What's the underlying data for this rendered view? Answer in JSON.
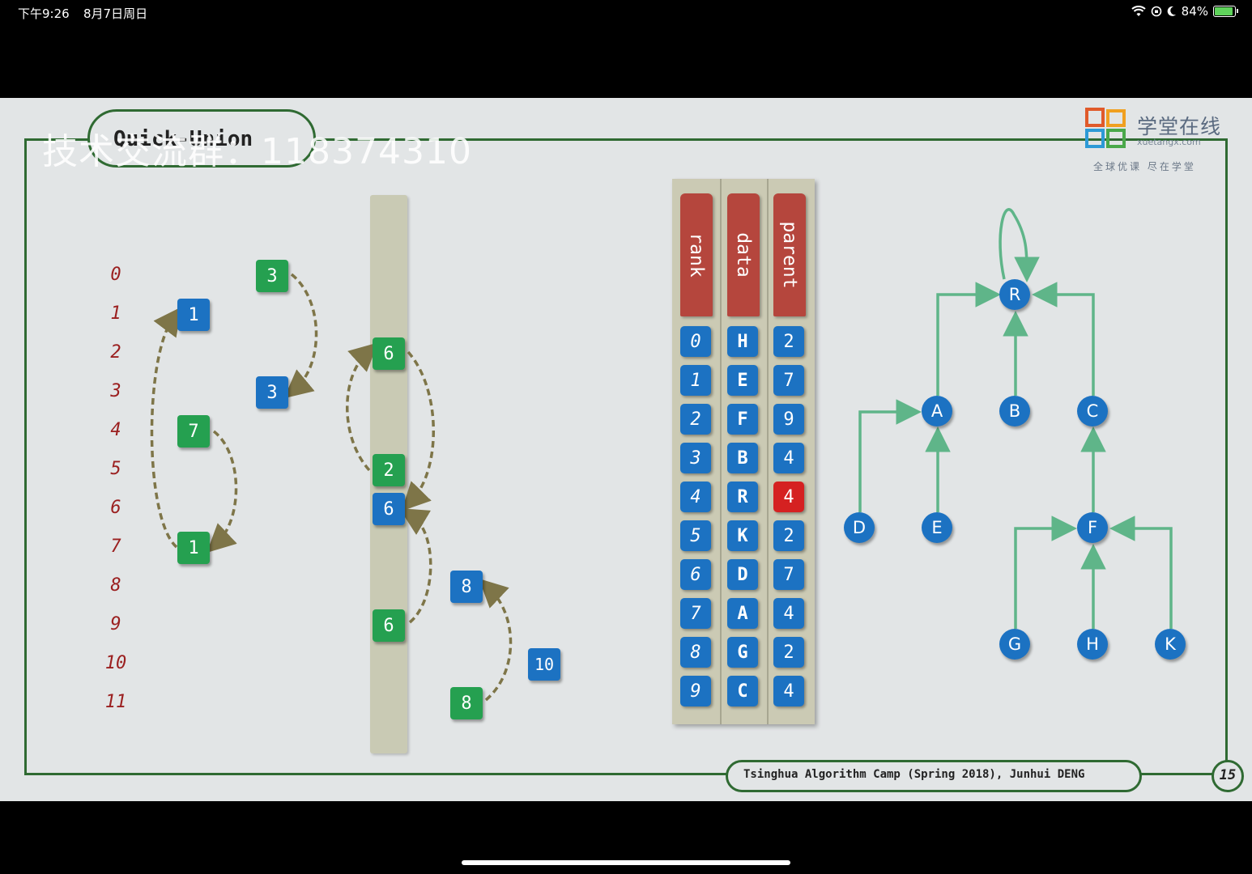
{
  "status_bar": {
    "time": "下午9:26",
    "date": "8月7日周日",
    "battery": "84%"
  },
  "slide": {
    "title": "Quick-Union",
    "watermark": "技术交流群：118374310",
    "logo": {
      "name": "学堂在线",
      "sub": "xuetangx.com",
      "slogan": "全球优课 尽在学堂"
    },
    "footer": "Tsinghua Algorithm Camp (Spring 2018), Junhui DENG",
    "page_number": "15",
    "indices": [
      "0",
      "1",
      "2",
      "3",
      "4",
      "5",
      "6",
      "7",
      "8",
      "9",
      "10",
      "11"
    ],
    "left_boxes": [
      {
        "label": "1",
        "color": "blue"
      },
      {
        "label": "7",
        "color": "green"
      },
      {
        "label": "1",
        "color": "green"
      },
      {
        "label": "3",
        "color": "green"
      },
      {
        "label": "3",
        "color": "blue"
      },
      {
        "label": "6",
        "color": "green"
      },
      {
        "label": "2",
        "color": "green"
      },
      {
        "label": "6",
        "color": "blue"
      },
      {
        "label": "6",
        "color": "green"
      },
      {
        "label": "8",
        "color": "blue"
      },
      {
        "label": "10",
        "color": "blue"
      },
      {
        "label": "8",
        "color": "green"
      }
    ],
    "table": {
      "headers": [
        "rank",
        "data",
        "parent"
      ],
      "rank": [
        "0",
        "1",
        "2",
        "3",
        "4",
        "5",
        "6",
        "7",
        "8",
        "9"
      ],
      "data": [
        "H",
        "E",
        "F",
        "B",
        "R",
        "K",
        "D",
        "A",
        "G",
        "C"
      ],
      "parent": [
        "2",
        "7",
        "9",
        "4",
        "4",
        "2",
        "7",
        "4",
        "2",
        "4"
      ],
      "highlight_parent_row": 4,
      "colors": {
        "cell": "#1c72c2",
        "highlight": "#d52121",
        "header": "#b5463d"
      }
    },
    "tree_nodes": [
      "R",
      "A",
      "B",
      "C",
      "D",
      "E",
      "F",
      "G",
      "H",
      "K"
    ],
    "colors": {
      "green": "#25a050",
      "blue": "#1c72c2",
      "frame": "#2f6a32",
      "arrow_brown": "#7e7548",
      "arrow_green": "#5fb589"
    }
  }
}
